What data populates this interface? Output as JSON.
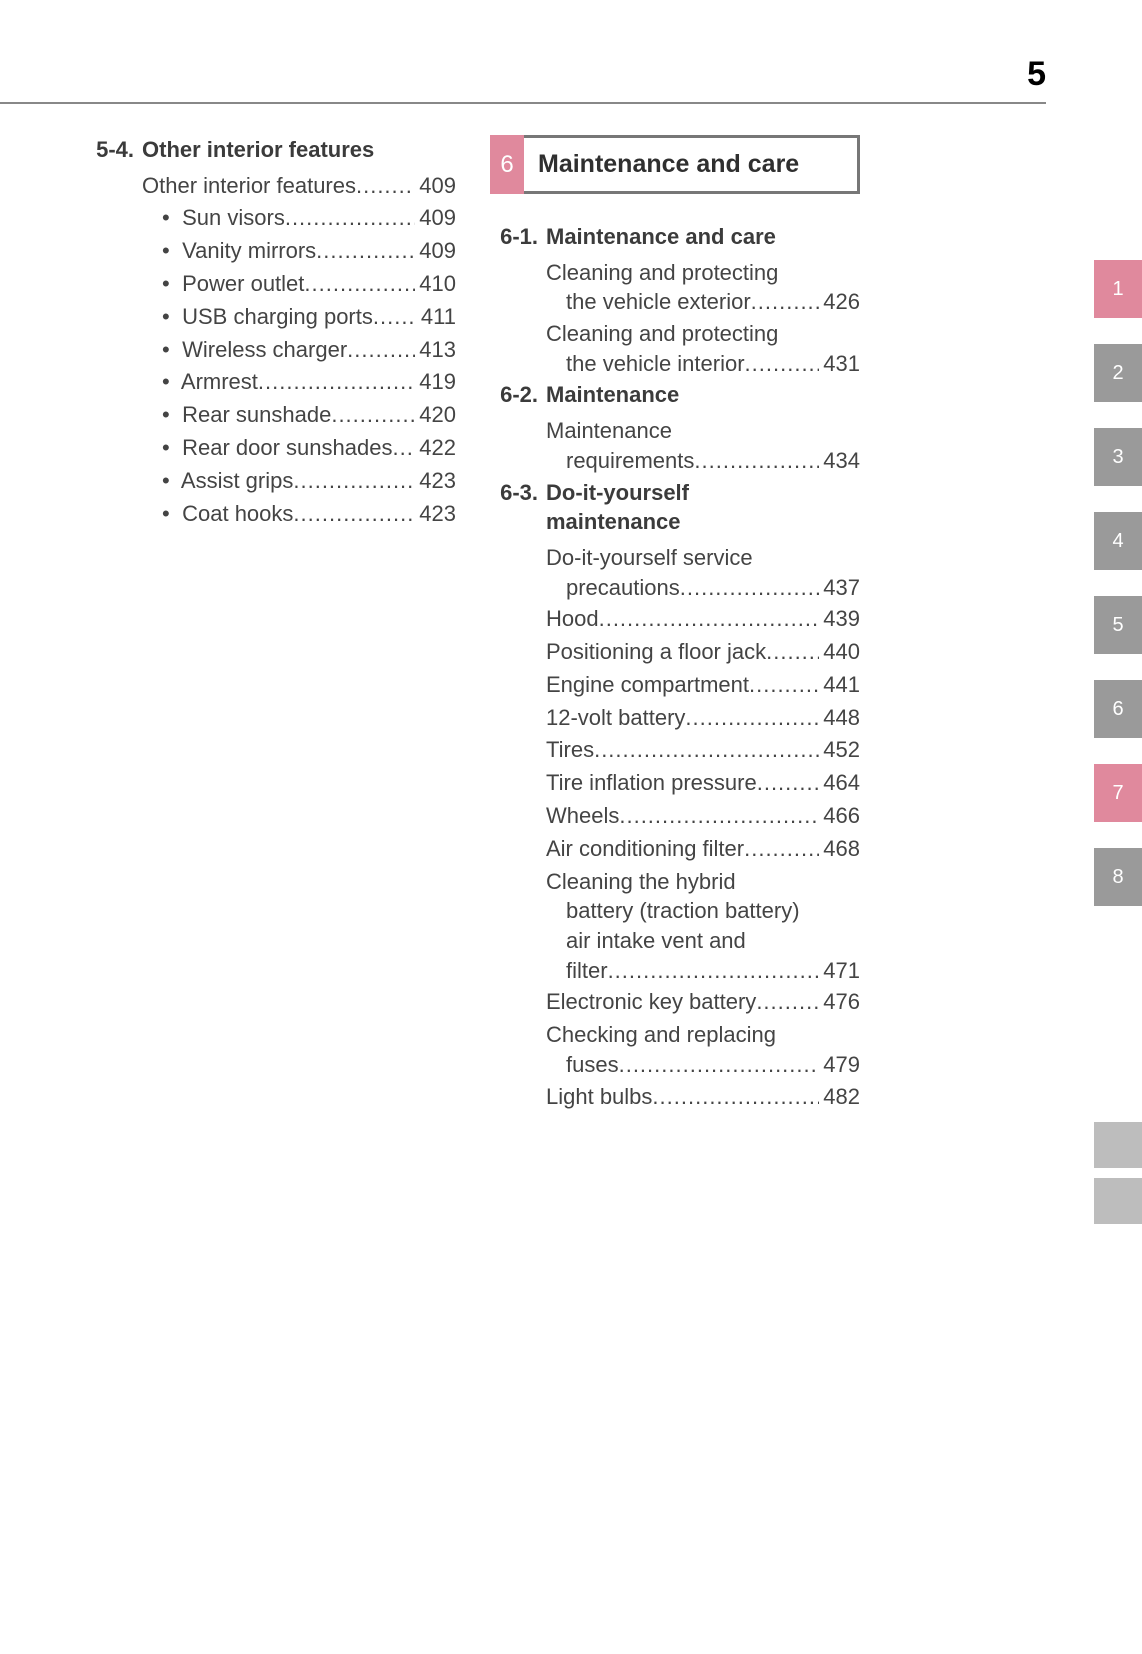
{
  "page_number": "5",
  "left_section": {
    "number": "5-4.",
    "title": "Other interior features",
    "lead": {
      "label": "Other interior features",
      "page": "409"
    },
    "sub_items": [
      {
        "label": "Sun visors",
        "page": "409"
      },
      {
        "label": "Vanity mirrors",
        "page": "409"
      },
      {
        "label": "Power outlet",
        "page": "410"
      },
      {
        "label": "USB charging ports",
        "page": "411"
      },
      {
        "label": "Wireless charger",
        "page": "413"
      },
      {
        "label": "Armrest",
        "page": "419"
      },
      {
        "label": "Rear sunshade",
        "page": "420"
      },
      {
        "label": "Rear door sunshades",
        "page": "422"
      },
      {
        "label": "Assist grips",
        "page": "423"
      },
      {
        "label": "Coat hooks",
        "page": "423"
      }
    ]
  },
  "chapter": {
    "number": "6",
    "title": "Maintenance and care"
  },
  "right_sections": [
    {
      "number": "6-1.",
      "title": "Maintenance and care",
      "items": [
        {
          "label_lines": [
            "Cleaning and protecting",
            "the vehicle exterior"
          ],
          "page": "426"
        },
        {
          "label_lines": [
            "Cleaning and protecting",
            "the vehicle interior"
          ],
          "page": "431"
        }
      ]
    },
    {
      "number": "6-2.",
      "title": "Maintenance",
      "items": [
        {
          "label_lines": [
            "Maintenance",
            "requirements"
          ],
          "page": "434"
        }
      ]
    },
    {
      "number": "6-3.",
      "title": "Do-it-yourself maintenance",
      "title_lines": [
        "Do-it-yourself",
        "maintenance"
      ],
      "items": [
        {
          "label_lines": [
            "Do-it-yourself service",
            "precautions"
          ],
          "page": "437"
        },
        {
          "label": "Hood",
          "page": "439"
        },
        {
          "label": "Positioning a floor jack",
          "page": "440"
        },
        {
          "label": "Engine compartment",
          "page": "441"
        },
        {
          "label": "12-volt battery",
          "page": "448"
        },
        {
          "label": "Tires",
          "page": "452"
        },
        {
          "label": "Tire inflation pressure",
          "page": "464"
        },
        {
          "label": "Wheels",
          "page": "466"
        },
        {
          "label": "Air conditioning filter",
          "page": "468"
        },
        {
          "label_lines": [
            "Cleaning the hybrid",
            "battery (traction battery)",
            "air intake vent and",
            "filter"
          ],
          "page": "471"
        },
        {
          "label": "Electronic key battery",
          "page": "476"
        },
        {
          "label_lines": [
            "Checking and replacing",
            "fuses"
          ],
          "page": "479"
        },
        {
          "label": "Light bulbs",
          "page": "482"
        }
      ]
    }
  ],
  "side_tabs": [
    {
      "n": "1",
      "color": "pink"
    },
    {
      "n": "2",
      "color": "gray"
    },
    {
      "n": "3",
      "color": "gray"
    },
    {
      "n": "4",
      "color": "gray"
    },
    {
      "n": "5",
      "color": "gray"
    },
    {
      "n": "6",
      "color": "gray"
    },
    {
      "n": "7",
      "color": "pink"
    },
    {
      "n": "8",
      "color": "gray"
    }
  ],
  "colors": {
    "pink": "#e0899d",
    "gray_tab": "#9a9a9a",
    "text": "#3d3d3d",
    "rule": "#888888"
  }
}
